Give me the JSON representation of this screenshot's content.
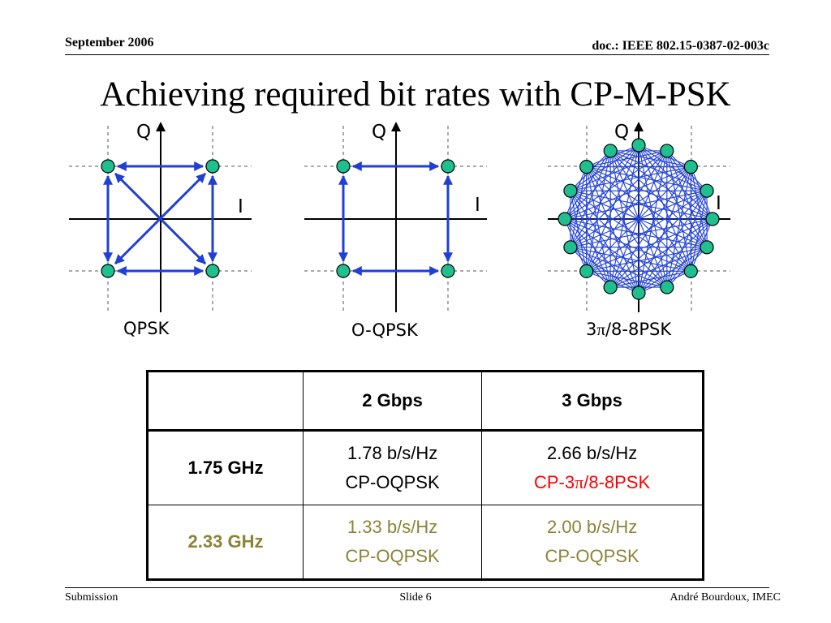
{
  "header": {
    "date": "September 2006",
    "doc": "doc.: IEEE 802.15-0387-02-003c"
  },
  "title": "Achieving required bit rates with CP-M-PSK",
  "diagrams": [
    {
      "caption": "QPSK",
      "q_label": "Q",
      "i_label": "I"
    },
    {
      "caption": "O-QPSK",
      "q_label": "Q",
      "i_label": "I"
    },
    {
      "caption_prefix": "3",
      "caption_pi": "π",
      "caption_suffix": "/8-8PSK",
      "q_label": "Q",
      "i_label": "I"
    }
  ],
  "colors": {
    "point_fill": "#1fbf8f",
    "arrow": "#1f3fd6",
    "red": "#ff0000",
    "olive": "#8c8337"
  },
  "table": {
    "headers": [
      "",
      "2 Gbps",
      "3 Gbps"
    ],
    "rows": [
      {
        "label": "1.75 GHz",
        "cells": [
          {
            "rate": "1.78 b/s/Hz",
            "mod": "CP-OQPSK"
          },
          {
            "rate": "2.66 b/s/Hz",
            "mod_prefix": "CP-3",
            "mod_pi": "π",
            "mod_suffix": "/8-8PSK"
          }
        ]
      },
      {
        "label": "2.33 GHz",
        "cells": [
          {
            "rate": "1.33 b/s/Hz",
            "mod": "CP-OQPSK"
          },
          {
            "rate": "2.00 b/s/Hz",
            "mod": "CP-OQPSK"
          }
        ]
      }
    ]
  },
  "footer": {
    "left": "Submission",
    "center": "Slide 6",
    "right": "André Bourdoux, IMEC"
  }
}
